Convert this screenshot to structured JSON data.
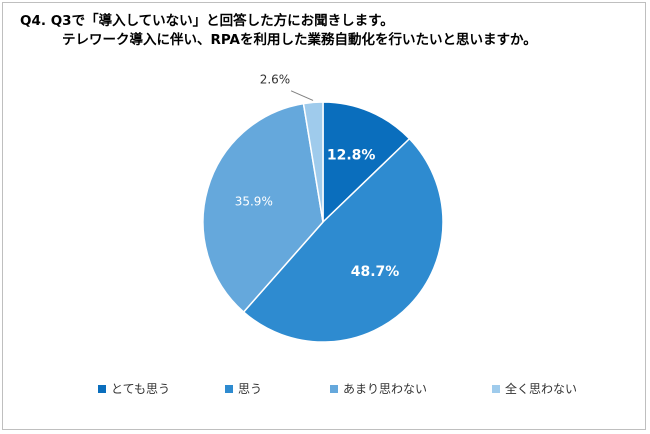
{
  "title": {
    "line1": "Q4. Q3で「導入していない」と回答した方にお聞きします。",
    "line2": "テレワーク導入に伴い、RPAを利用した業務自動化を行いたいと思いますか。"
  },
  "chart_data": {
    "type": "pie",
    "start_angle_deg": 0,
    "direction": "clockwise",
    "slices": [
      {
        "label": "とても思う",
        "value": 12.8,
        "display": "12.8%",
        "color": "#0a6ebd"
      },
      {
        "label": "思う",
        "value": 48.7,
        "display": "48.7%",
        "color": "#2e8bd0"
      },
      {
        "label": "あまり思わない",
        "value": 35.9,
        "display": "35.9%",
        "color": "#65a8dc"
      },
      {
        "label": "全く思わない",
        "value": 2.6,
        "display": "2.6%",
        "color": "#9fcbec"
      }
    ],
    "legend_position": "bottom"
  }
}
